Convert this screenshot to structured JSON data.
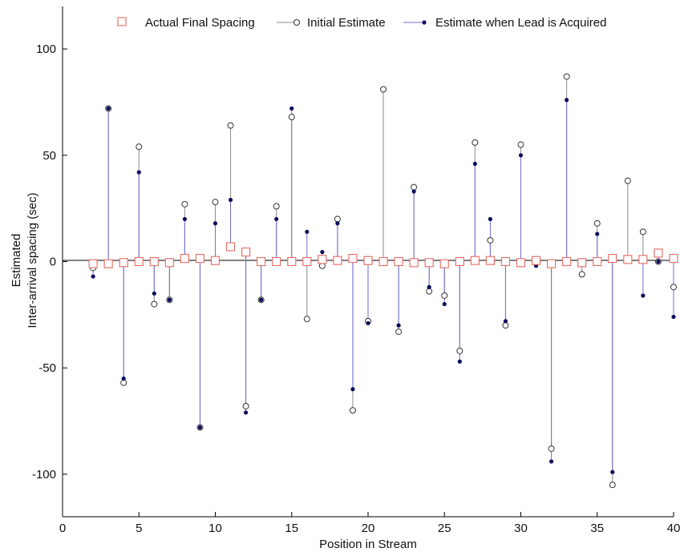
{
  "chart_data": {
    "type": "scatter",
    "xlabel": "Position in Stream",
    "ylabel_lines": [
      "Estimated",
      "Inter-arrival spacing (sec)"
    ],
    "xlim": [
      0,
      40
    ],
    "ylim": [
      -120,
      120
    ],
    "x_ticks": [
      0,
      5,
      10,
      15,
      20,
      25,
      30,
      35,
      40
    ],
    "y_ticks": [
      -100,
      -50,
      0,
      50,
      100
    ],
    "grid": false,
    "legend_position": "top",
    "colors": {
      "actual": "#e8736c",
      "initial_marker": "#333333",
      "initial_stem": "#8c8c8c",
      "acquired_marker": "#0b0b5e",
      "acquired_stem": "#6f6fd0",
      "axis": "#000000"
    },
    "series": [
      {
        "name": "Actual Final Spacing",
        "marker": "open-square",
        "x": [
          2,
          3,
          4,
          5,
          6,
          7,
          8,
          9,
          10,
          11,
          12,
          13,
          14,
          15,
          16,
          17,
          18,
          19,
          20,
          21,
          22,
          23,
          24,
          25,
          26,
          27,
          28,
          29,
          30,
          31,
          32,
          33,
          34,
          35,
          36,
          37,
          38,
          39,
          40
        ],
        "values": [
          -1,
          -1,
          -0.5,
          0,
          0,
          -0.5,
          1.5,
          1.5,
          0.5,
          7,
          4.5,
          0,
          0,
          0,
          0,
          1,
          0.5,
          1.5,
          0.5,
          0,
          0,
          -0.5,
          -0.5,
          -1,
          0,
          0.5,
          0.5,
          0,
          -0.5,
          0.5,
          -1,
          0,
          -0.5,
          0,
          1.5,
          1,
          1,
          4,
          1.5
        ]
      },
      {
        "name": "Initial Estimate",
        "marker": "open-circle",
        "x": [
          2,
          3,
          4,
          5,
          6,
          7,
          8,
          9,
          10,
          11,
          12,
          13,
          14,
          15,
          16,
          17,
          18,
          19,
          20,
          21,
          22,
          23,
          24,
          25,
          26,
          27,
          28,
          29,
          30,
          31,
          32,
          33,
          34,
          35,
          36,
          37,
          38,
          39,
          40
        ],
        "values": [
          -3,
          72,
          -57,
          54,
          -20,
          -18,
          27,
          -78,
          28,
          64,
          -68,
          -18,
          26,
          68,
          -27,
          -2,
          20,
          -70,
          -28,
          81,
          -33,
          35,
          -14,
          -16,
          -42,
          56,
          10,
          -30,
          55,
          1,
          -88,
          87,
          -6,
          18,
          -105,
          38,
          14,
          0,
          -12
        ]
      },
      {
        "name": "Estimate when Lead is Acquired",
        "marker": "filled-dot",
        "x": [
          2,
          3,
          4,
          5,
          6,
          7,
          8,
          9,
          10,
          11,
          12,
          13,
          14,
          15,
          16,
          17,
          18,
          19,
          20,
          21,
          22,
          23,
          24,
          25,
          26,
          27,
          28,
          29,
          30,
          31,
          32,
          33,
          34,
          35,
          36,
          37,
          38,
          39,
          40
        ],
        "values": [
          -7,
          72,
          -55,
          42,
          -15,
          -18,
          20,
          -78,
          18,
          29,
          -71,
          -18,
          20,
          72,
          14,
          4.5,
          18,
          -60,
          -29,
          null,
          -30,
          33,
          -12,
          -20,
          -47,
          46,
          20,
          -28,
          50,
          -2,
          -94,
          76,
          -1,
          13,
          -99,
          null,
          -16,
          0,
          -26
        ]
      }
    ]
  }
}
